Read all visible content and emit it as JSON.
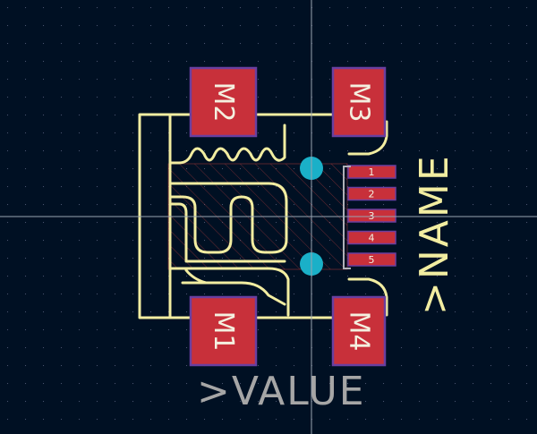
{
  "colors": {
    "background": "#001023",
    "grid": "#4a5570",
    "crosshair": "#9aa3b0",
    "silkscreen": "#f2eda1",
    "pad": "#c8303a",
    "pad_outline": "#6a3fa0",
    "via": "#1ab0c8",
    "fab_text": "#a6a6a6",
    "keepout": "#b83a3a"
  },
  "footprint": {
    "reference_text": ">NAME",
    "value_text": ">VALUE",
    "mounting_pads": [
      {
        "id": "mp-m1",
        "label": "M1"
      },
      {
        "id": "mp-m2",
        "label": "M2"
      },
      {
        "id": "mp-m3",
        "label": "M3"
      },
      {
        "id": "mp-m4",
        "label": "M4"
      }
    ],
    "signal_pads": [
      {
        "id": "pad-1",
        "label": "1"
      },
      {
        "id": "pad-2",
        "label": "2"
      },
      {
        "id": "pad-3",
        "label": "3"
      },
      {
        "id": "pad-4",
        "label": "4"
      },
      {
        "id": "pad-5",
        "label": "5"
      }
    ],
    "vias": [
      {
        "id": "via-top"
      },
      {
        "id": "via-bottom"
      }
    ]
  }
}
